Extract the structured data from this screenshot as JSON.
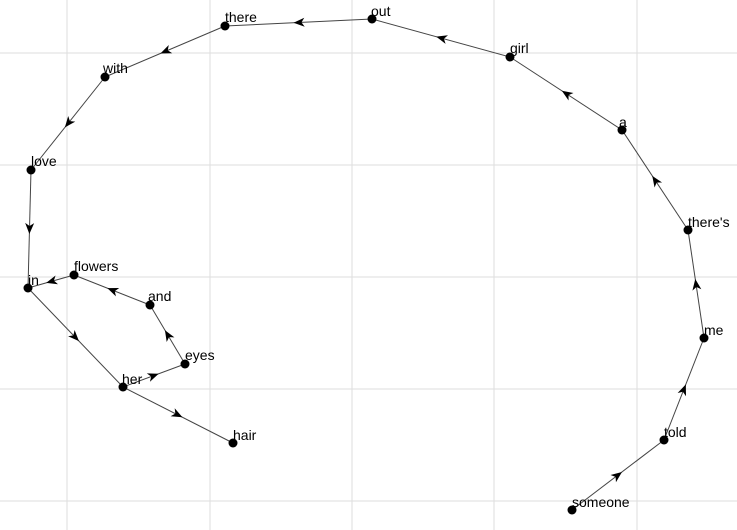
{
  "colors": {
    "background": "#ffffff",
    "grid": "#dedede",
    "edge": "#444444",
    "node": "#000000",
    "label": "#000000"
  },
  "grid": true,
  "path_words": [
    "someone",
    "told",
    "me",
    "there's",
    "a",
    "girl",
    "out",
    "there",
    "with",
    "love",
    "in",
    "her",
    "hair"
  ],
  "nodes": [
    {
      "id": "someone",
      "label": "someone"
    },
    {
      "id": "told",
      "label": "told"
    },
    {
      "id": "me",
      "label": "me"
    },
    {
      "id": "theres",
      "label": "there's"
    },
    {
      "id": "a",
      "label": "a"
    },
    {
      "id": "girl",
      "label": "girl"
    },
    {
      "id": "out",
      "label": "out"
    },
    {
      "id": "there",
      "label": "there"
    },
    {
      "id": "with",
      "label": "with"
    },
    {
      "id": "love",
      "label": "love"
    },
    {
      "id": "in",
      "label": "in"
    },
    {
      "id": "flowers",
      "label": "flowers"
    },
    {
      "id": "and",
      "label": "and"
    },
    {
      "id": "eyes",
      "label": "eyes"
    },
    {
      "id": "her",
      "label": "her"
    },
    {
      "id": "hair",
      "label": "hair"
    }
  ],
  "edges": [
    {
      "from": "someone",
      "to": "told"
    },
    {
      "from": "told",
      "to": "me"
    },
    {
      "from": "me",
      "to": "theres"
    },
    {
      "from": "theres",
      "to": "a"
    },
    {
      "from": "a",
      "to": "girl"
    },
    {
      "from": "girl",
      "to": "out"
    },
    {
      "from": "out",
      "to": "there"
    },
    {
      "from": "there",
      "to": "with"
    },
    {
      "from": "with",
      "to": "love"
    },
    {
      "from": "love",
      "to": "in"
    },
    {
      "from": "in",
      "to": "her"
    },
    {
      "from": "her",
      "to": "eyes"
    },
    {
      "from": "eyes",
      "to": "and"
    },
    {
      "from": "and",
      "to": "flowers"
    },
    {
      "from": "flowers",
      "to": "in"
    },
    {
      "from": "her",
      "to": "hair"
    }
  ]
}
